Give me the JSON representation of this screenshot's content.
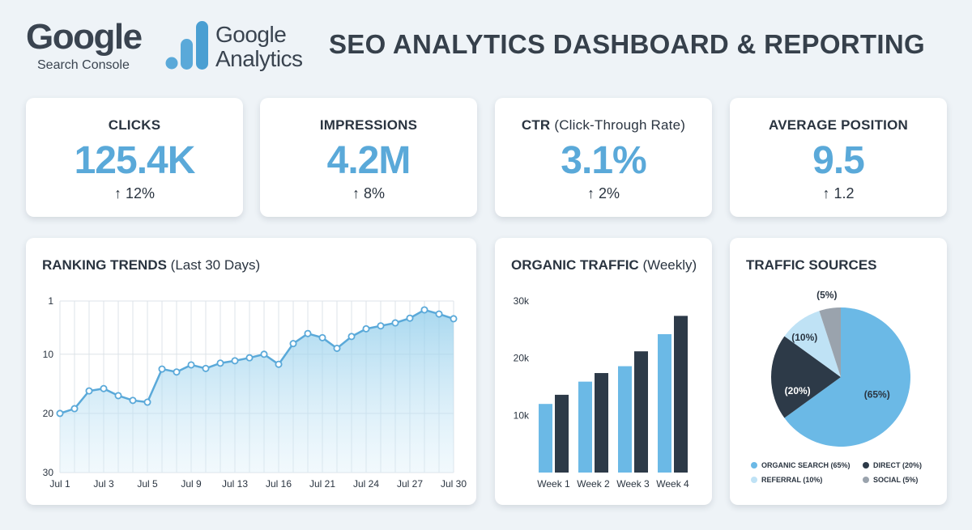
{
  "header": {
    "gsc_word": "Google",
    "gsc_sub": "Search Console",
    "ga_word1": "Google",
    "ga_word2": "Analytics",
    "title": "SEO ANALYTICS DASHBOARD & REPORTING"
  },
  "kpis": [
    {
      "label": "CLICKS",
      "label_extra": "",
      "value": "125.4K",
      "change": "↑ 12%"
    },
    {
      "label": "IMPRESSIONS",
      "label_extra": "",
      "value": "4.2M",
      "change": "↑ 8%"
    },
    {
      "label": "CTR",
      "label_extra": " (Click-Through Rate)",
      "value": "3.1%",
      "change": "↑ 2%"
    },
    {
      "label": "AVERAGE POSITION",
      "label_extra": "",
      "value": "9.5",
      "change": "↑ 1.2"
    }
  ],
  "colors": {
    "accent": "#5aa9d9",
    "light_blue": "#6bb9e6",
    "dark_navy": "#2d3a48",
    "pale_blue": "#bfe2f5",
    "gray": "#9aa3ad",
    "background": "#eef3f7"
  },
  "chart_data": [
    {
      "id": "ranking",
      "type": "line",
      "title": "RANKING TRENDS",
      "title_extra": " (Last 30 Days)",
      "x_ticks": [
        "Jul 1",
        "Jul 3",
        "Jul 5",
        "Jul 9",
        "Jul 13",
        "Jul 16",
        "Jul 21",
        "Jul 24",
        "Jul 27",
        "Jul 30"
      ],
      "y_ticks": [
        "1",
        "10",
        "20",
        "30"
      ],
      "y_tick_values": [
        1,
        10,
        20,
        30
      ],
      "ylim": [
        1,
        30
      ],
      "y_inverted": true,
      "area_fill": true,
      "grid": true,
      "series": [
        {
          "values": [
            20,
            19.2,
            16.2,
            15.8,
            17,
            17.8,
            18.1,
            12.5,
            13,
            11.8,
            12.4,
            11.5,
            11.1,
            10.6,
            10,
            11.7,
            8.2,
            6.5,
            7.2,
            9,
            7,
            5.7,
            5.2,
            4.7,
            3.9,
            2.5,
            3.2,
            4
          ]
        }
      ]
    },
    {
      "id": "organic",
      "type": "bar",
      "title": "ORGANIC TRAFFIC",
      "title_extra": " (Weekly)",
      "categories": [
        "Week 1",
        "Week 2",
        "Week 3",
        "Week 4"
      ],
      "y_ticks": [
        "10k",
        "20k",
        "30k"
      ],
      "y_tick_values": [
        10000,
        20000,
        30000
      ],
      "ylim": [
        0,
        30000
      ],
      "grid": false,
      "series": [
        {
          "values": [
            12000,
            15900,
            18600,
            24200
          ]
        },
        {
          "values": [
            13600,
            17400,
            21200,
            27400
          ]
        }
      ]
    },
    {
      "id": "sources",
      "type": "pie",
      "title": "TRAFFIC SOURCES",
      "slices": [
        {
          "label": "(65%)",
          "legend": "ORGANIC SEARCH (65%)",
          "value": 65,
          "color": "#6bb9e6"
        },
        {
          "label": "(20%)",
          "legend": "DIRECT (20%)",
          "value": 20,
          "color": "#2d3a48"
        },
        {
          "label": "(10%)",
          "legend": "REFERRAL (10%)",
          "value": 10,
          "color": "#bfe2f5"
        },
        {
          "label": "(5%)",
          "legend": "SOCIAL (5%)",
          "value": 5,
          "color": "#9aa3ad"
        }
      ]
    }
  ]
}
